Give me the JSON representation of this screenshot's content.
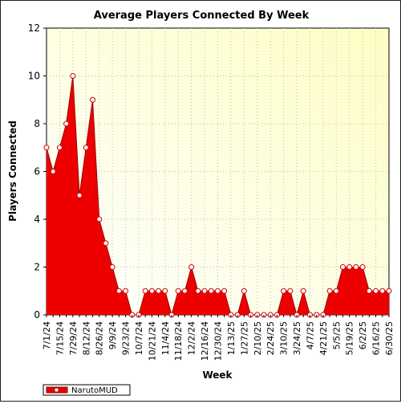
{
  "chart_data": {
    "type": "area",
    "title": "Average Players Connected By Week",
    "xlabel": "Week",
    "ylabel": "Players Connected",
    "ylim": [
      0,
      12
    ],
    "yticks": [
      0,
      2,
      4,
      6,
      8,
      10,
      12
    ],
    "grid": true,
    "legend_position": "bottom-left",
    "x": [
      "7/1/24",
      "7/8/24",
      "7/15/24",
      "7/22/24",
      "7/29/24",
      "8/5/24",
      "8/12/24",
      "8/19/24",
      "8/26/24",
      "9/2/24",
      "9/9/24",
      "9/16/24",
      "9/23/24",
      "9/30/24",
      "10/7/24",
      "10/14/24",
      "10/21/24",
      "10/28/24",
      "11/4/24",
      "11/11/24",
      "11/18/24",
      "11/25/24",
      "12/2/24",
      "12/9/24",
      "12/16/24",
      "12/23/24",
      "12/30/24",
      "1/6/25",
      "1/13/25",
      "1/20/25",
      "1/27/25",
      "2/3/25",
      "2/10/25",
      "2/17/25",
      "2/24/25",
      "3/3/25",
      "3/10/25",
      "3/17/25",
      "3/24/25",
      "3/31/25",
      "4/7/25",
      "4/14/25",
      "4/21/25",
      "4/28/25",
      "5/5/25",
      "5/12/25",
      "5/19/25",
      "5/26/25",
      "6/2/25",
      "6/9/25",
      "6/16/25",
      "6/23/25",
      "6/30/25"
    ],
    "tick_labels": [
      "7/1/24",
      "7/15/24",
      "7/29/24",
      "8/12/24",
      "8/26/24",
      "9/9/24",
      "9/23/24",
      "10/7/24",
      "10/21/24",
      "11/4/24",
      "11/18/24",
      "12/2/24",
      "12/16/24",
      "12/30/24",
      "1/13/25",
      "1/27/25",
      "2/10/25",
      "2/24/25",
      "3/10/25",
      "3/24/25",
      "4/7/25",
      "4/21/25",
      "5/5/25",
      "5/19/25",
      "6/2/25",
      "6/16/25",
      "6/30/25"
    ],
    "series": [
      {
        "name": "NarutoMUD",
        "color": "#ee0000",
        "values": [
          7,
          6,
          7,
          8,
          10,
          5,
          7,
          9,
          4,
          3,
          2,
          1,
          1,
          0,
          0,
          1,
          1,
          1,
          1,
          0,
          1,
          1,
          2,
          1,
          1,
          1,
          1,
          1,
          0,
          0,
          1,
          0,
          0,
          0,
          0,
          0,
          1,
          1,
          0,
          1,
          0,
          0,
          0,
          1,
          1,
          2,
          2,
          2,
          2,
          1,
          1,
          1,
          1
        ]
      }
    ]
  }
}
